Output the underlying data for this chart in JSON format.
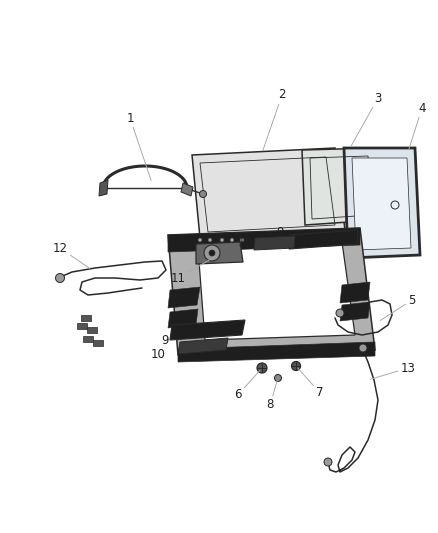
{
  "bg_color": "#ffffff",
  "line_color": "#2a2a2a",
  "dark_fill": "#1e1e1e",
  "mid_fill": "#555555",
  "light_fill": "#cccccc",
  "lighter_fill": "#e2e2e2",
  "leader_color": "#aaaaaa",
  "label_color": "#222222",
  "label_fs": 8.5
}
